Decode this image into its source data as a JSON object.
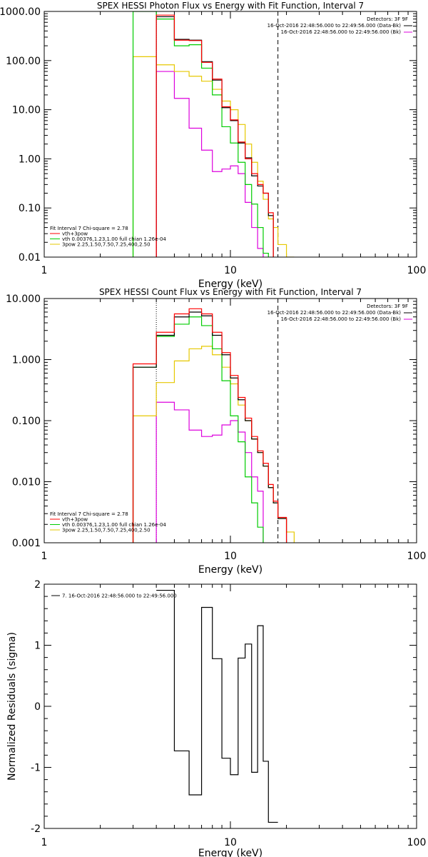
{
  "chart_data": [
    {
      "type": "line",
      "title": "SPEX HESSI Photon Flux vs Energy with Fit Function, Interval 7",
      "xlabel": "Energy (keV)",
      "ylabel": "",
      "xscale": "log",
      "yscale": "log",
      "xlim": [
        1,
        100
      ],
      "ylim": [
        0.01,
        1000
      ],
      "xticks": [
        "1",
        "10",
        "100"
      ],
      "yticks": [
        "0.01",
        "0.10",
        "1.00",
        "10.00",
        "100.00",
        "1000.00"
      ],
      "legend_top": [
        "Detectors: 3F 9F",
        "16-Oct-2016 22:48:56.000 to 22:49:56.000 (Data-Bk)",
        "16-Oct-2016 22:48:56.000 to 22:49:56.000 (Bk)"
      ],
      "legend_bottom": [
        "Fit Interval 7   Chi-square = 2.78",
        "vth+3pow",
        "vth 0.00376,1.23,1.00  full chian 1.26e-04",
        "3pow 2.25,1.50,7.50,7.25,400,2.50"
      ],
      "vlines": [
        {
          "x": 4.0,
          "style": "dotted"
        },
        {
          "x": 18.0,
          "style": "dashed"
        }
      ],
      "edges": [
        3,
        4,
        5,
        6,
        7,
        8,
        9,
        10,
        11,
        12,
        13,
        14,
        15,
        16,
        17,
        18,
        20,
        22,
        25
      ],
      "series": [
        {
          "name": "Data-Bk",
          "color": "#000000",
          "values": [
            null,
            780,
            270,
            260,
            95,
            40,
            11,
            6,
            2.1,
            1.05,
            0.45,
            0.28,
            0.2,
            0.07,
            null,
            null,
            null,
            null
          ]
        },
        {
          "name": "vth+3pow",
          "color": "#ff0000",
          "values": [
            null,
            840,
            260,
            255,
            92,
            42,
            11.5,
            6.2,
            2.2,
            1.0,
            0.5,
            0.3,
            0.2,
            0.08,
            null,
            null,
            null,
            null
          ]
        },
        {
          "name": "vth",
          "color": "#00cc00",
          "values": [
            1000,
            700,
            200,
            210,
            70,
            20,
            4.5,
            2.1,
            0.85,
            0.3,
            0.12,
            0.04,
            0.012,
            null,
            null,
            null,
            null,
            null
          ]
        },
        {
          "name": "3pow",
          "color": "#e6c800",
          "values": [
            120,
            82,
            60,
            48,
            38,
            26,
            15,
            10,
            5.0,
            2.0,
            0.85,
            0.35,
            0.15,
            0.06,
            0.04,
            0.018,
            0.01,
            null
          ]
        },
        {
          "name": "Bk",
          "color": "#dd00dd",
          "values": [
            null,
            60,
            17,
            4.2,
            1.5,
            0.55,
            0.62,
            0.72,
            0.5,
            0.13,
            0.04,
            0.015,
            null,
            null,
            null,
            null,
            null,
            null
          ]
        }
      ]
    },
    {
      "type": "line",
      "title": "SPEX HESSI Count Flux vs Energy with Fit Function, Interval 7",
      "xlabel": "Energy (keV)",
      "ylabel": "",
      "xscale": "log",
      "yscale": "log",
      "xlim": [
        1,
        100
      ],
      "ylim": [
        0.001,
        10
      ],
      "xticks": [
        "1",
        "10",
        "100"
      ],
      "yticks": [
        "0.001",
        "0.010",
        "0.100",
        "1.000",
        "10.000"
      ],
      "legend_top": [
        "Detectors: 3F 9F",
        "16-Oct-2016 22:48:56.000 to 22:49:56.000 (Data-Bk)",
        "16-Oct-2016 22:48:56.000 to 22:49:56.000 (Bk)"
      ],
      "legend_bottom": [
        "Fit Interval 7   Chi-square = 2.78",
        "vth+3pow",
        "vth 0.00376,1.23,1.00  full chian 1.26e-04",
        "3pow 2.25,1.50,7.50,7.25,400,2.50"
      ],
      "vlines": [
        {
          "x": 4.0,
          "style": "dotted"
        },
        {
          "x": 18.0,
          "style": "dashed"
        }
      ],
      "edges": [
        3,
        4,
        5,
        6,
        7,
        8,
        9,
        10,
        11,
        12,
        13,
        14,
        15,
        16,
        17,
        18,
        20,
        22,
        25
      ],
      "series": [
        {
          "name": "Data-Bk",
          "color": "#000000",
          "values": [
            0.75,
            2.5,
            5.0,
            6.0,
            5.2,
            2.5,
            1.2,
            0.5,
            0.22,
            0.1,
            0.05,
            0.03,
            0.018,
            0.008,
            0.0045,
            0.0025,
            null,
            null
          ]
        },
        {
          "name": "vth+3pow",
          "color": "#ff0000",
          "values": [
            0.85,
            2.8,
            5.6,
            6.8,
            5.6,
            2.8,
            1.3,
            0.55,
            0.24,
            0.11,
            0.055,
            0.032,
            0.02,
            0.009,
            0.0048,
            0.0026,
            null,
            null
          ]
        },
        {
          "name": "vth",
          "color": "#00cc00",
          "values": [
            0.75,
            2.4,
            3.8,
            5.0,
            3.6,
            1.5,
            0.45,
            0.12,
            0.045,
            0.012,
            0.0045,
            0.0018,
            null,
            null,
            null,
            null,
            null,
            null
          ]
        },
        {
          "name": "3pow",
          "color": "#e6c800",
          "values": [
            0.12,
            0.42,
            0.95,
            1.5,
            1.65,
            1.2,
            0.75,
            0.4,
            0.18,
            0.1,
            0.05,
            0.03,
            0.018,
            0.008,
            0.0045,
            0.0025,
            0.0015,
            null
          ]
        },
        {
          "name": "Bk",
          "color": "#dd00dd",
          "values": [
            null,
            0.2,
            0.15,
            0.07,
            0.055,
            0.058,
            0.085,
            0.1,
            0.065,
            0.03,
            0.012,
            0.007,
            null,
            null,
            null,
            null,
            null,
            null
          ]
        }
      ]
    },
    {
      "type": "line",
      "title": "",
      "xlabel": "Energy (keV)",
      "ylabel": "Normalized Residuals (sigma)",
      "xscale": "log",
      "yscale": "linear",
      "xlim": [
        1,
        100
      ],
      "ylim": [
        -2,
        2
      ],
      "xticks": [
        "1",
        "10",
        "100"
      ],
      "yticks": [
        "-2",
        "-1",
        "0",
        "1",
        "2"
      ],
      "legend_top": [
        "7. 16-Oct-2016 22:48:56.000 to 22:49:56.000"
      ],
      "edges": [
        4,
        5,
        6,
        7,
        8,
        9,
        10,
        11,
        12,
        13,
        14,
        15,
        16,
        17,
        18
      ],
      "series": [
        {
          "name": "",
          "color": "#000000",
          "values": [
            1.9,
            -0.73,
            -1.45,
            1.62,
            0.78,
            -0.85,
            -1.12,
            0.79,
            1.02,
            -1.08,
            1.32,
            -0.9,
            -1.9,
            -1.9
          ]
        }
      ]
    }
  ]
}
